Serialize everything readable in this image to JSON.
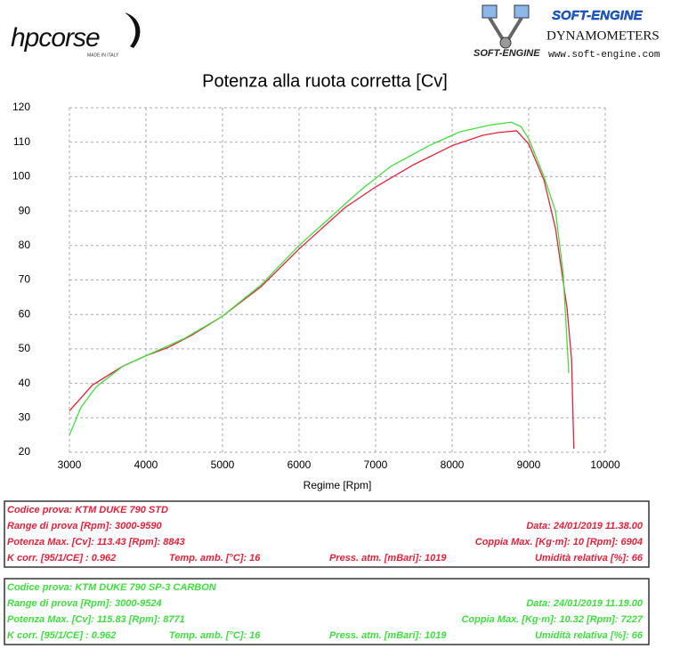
{
  "header": {
    "brand": "hpcorse",
    "brand_tagline": "MADE IN ITALY",
    "dyno_brand": "SOFT-ENGINE",
    "dyno_subtitle": "DYNAMOMETERS",
    "dyno_url": "www.soft-engine.com",
    "dyno_logo_text": "SOFT-ENGINE"
  },
  "chart_data": {
    "type": "line",
    "title": "Potenza alla ruota corretta [Cv]",
    "x_label": "Regime [Rpm]",
    "xlim": [
      3000,
      10000
    ],
    "xticks": [
      3000,
      4000,
      5000,
      6000,
      7000,
      8000,
      9000,
      10000
    ],
    "ylim": [
      20,
      120
    ],
    "yticks": [
      20,
      30,
      40,
      50,
      60,
      70,
      80,
      90,
      100,
      110,
      120
    ],
    "grid": true,
    "series": [
      {
        "color": "#e8203a",
        "x": [
          3000,
          3300,
          3700,
          4000,
          4300,
          4600,
          5000,
          5500,
          6000,
          6300,
          6600,
          7000,
          7500,
          8000,
          8400,
          8600,
          8843,
          9000,
          9200,
          9350,
          9500,
          9560,
          9590
        ],
        "values": [
          32,
          39.5,
          45,
          48,
          50.5,
          54,
          59.5,
          68,
          79,
          85,
          91,
          97,
          103.5,
          109,
          112,
          112.8,
          113.3,
          109.5,
          99,
          85,
          62,
          47,
          21
        ]
      },
      {
        "color": "#3ee03e",
        "x": [
          3000,
          3150,
          3350,
          3700,
          4100,
          4500,
          5000,
          5500,
          6000,
          6400,
          6800,
          7200,
          7700,
          8100,
          8500,
          8771,
          8900,
          9000,
          9200,
          9350,
          9450,
          9524
        ],
        "values": [
          25,
          33,
          39,
          45,
          49,
          53,
          59.5,
          68.5,
          80,
          88,
          96,
          103,
          109,
          113,
          115,
          115.8,
          114.5,
          111,
          100,
          90,
          72,
          43
        ]
      }
    ]
  },
  "info_boxes": [
    {
      "rows": [
        [
          "Codice prova: KTM DUKE 790 STD"
        ],
        [
          "Range di prova [Rpm]: 3000-9590",
          "Data: 24/01/2019  11.38.00"
        ],
        [
          "Potenza Max. [Cv]: 113.43  [Rpm]: 8843",
          "Coppia Max. [Kg·m]: 10  [Rpm]: 6904"
        ],
        [
          "K corr. [95/1/CE] : 0.962",
          "Temp. amb. [°C]: 16",
          "Press. atm. [mBari]: 1019",
          "Umidità relativa [%]: 66"
        ]
      ]
    },
    {
      "rows": [
        [
          "Codice prova: KTM DUKE 790  SP-3 CARBON"
        ],
        [
          "Range di prova [Rpm]: 3000-9524",
          "Data: 24/01/2019  11.19.00"
        ],
        [
          "Potenza Max. [Cv]: 115.83  [Rpm]: 8771",
          "Coppia Max. [Kg·m]: 10.32  [Rpm]: 7227"
        ],
        [
          "K corr. [95/1/CE] : 0.962",
          "Temp. amb. [°C]: 16",
          "Press. atm. [mBari]: 1019",
          "Umidità relativa [%]: 66"
        ]
      ]
    }
  ]
}
